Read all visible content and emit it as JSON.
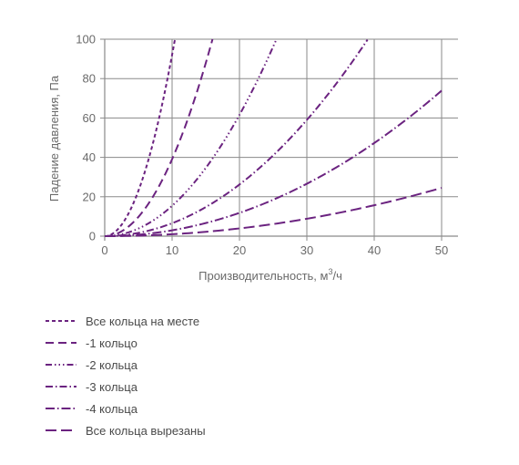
{
  "chart_data": {
    "type": "line",
    "xlabel": "Производительность, м³/ч",
    "xlabel_base": "Производительность, м",
    "xlabel_sup": "3",
    "xlabel_tail": "/ч",
    "ylabel": "Падение давления, Па",
    "xlim": [
      0,
      50
    ],
    "ylim": [
      0,
      100
    ],
    "xticks": [
      0,
      10,
      20,
      30,
      40,
      50
    ],
    "yticks": [
      0,
      20,
      40,
      60,
      80,
      100
    ],
    "grid": "vertical",
    "legend_position": "bottom",
    "series": [
      {
        "name": "Все кольца на месте",
        "dash": "4,3",
        "exponent": 2,
        "x": [
          0,
          2,
          4,
          6,
          8,
          10,
          10.5
        ],
        "y": [
          0,
          4,
          15,
          33,
          60,
          93,
          100
        ]
      },
      {
        "name": "-1 кольцо",
        "dash": "9,5",
        "exponent": 2,
        "x": [
          0,
          3,
          6,
          9,
          12,
          15,
          16
        ],
        "y": [
          0,
          3.5,
          14,
          32,
          56,
          88,
          100
        ]
      },
      {
        "name": "-2 кольца",
        "dash": "7,3,1.5,3,1.5,3,1.5,3",
        "exponent": 2,
        "x": [
          0,
          5,
          10,
          15,
          20,
          25,
          25.5
        ],
        "y": [
          0,
          3.8,
          15,
          35,
          62,
          96,
          100
        ]
      },
      {
        "name": "-3 кольца",
        "dash": "8,3,1.5,3",
        "exponent": 2,
        "x": [
          0,
          5,
          10,
          15,
          20,
          25,
          30,
          35,
          39
        ],
        "y": [
          0,
          1.6,
          6.5,
          15,
          26,
          41,
          59,
          80,
          100
        ]
      },
      {
        "name": "-4 кольца",
        "dash": "10,3,1.5,3",
        "exponent": 2,
        "x": [
          0,
          5,
          10,
          15,
          20,
          25,
          30,
          35,
          40,
          45,
          50
        ],
        "y": [
          0,
          0.7,
          3,
          6.7,
          12,
          18.5,
          26.5,
          36,
          47,
          60,
          74
        ]
      },
      {
        "name": "Все кольца вырезаны",
        "dash": "12,5",
        "exponent": 2,
        "x": [
          0,
          5,
          10,
          15,
          20,
          25,
          30,
          35,
          40,
          45,
          50
        ],
        "y": [
          0,
          0.25,
          1,
          2.2,
          3.9,
          6.1,
          8.8,
          12,
          15.7,
          19.9,
          24.5
        ]
      }
    ]
  },
  "colors": {
    "series": "#6b2380",
    "grid": "#8a8a8a",
    "axis": "#8a8a8a"
  }
}
